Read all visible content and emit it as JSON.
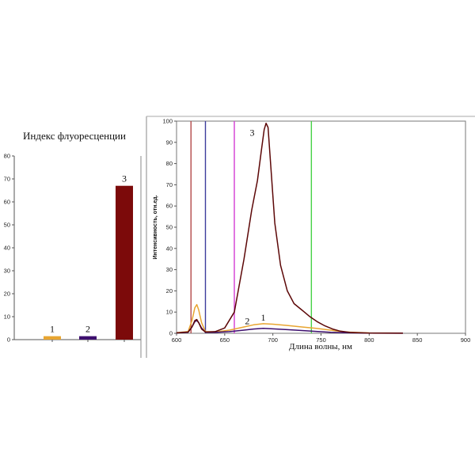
{
  "chart_data": [
    {
      "type": "bar",
      "title": "Индекс флуоресценции",
      "categories": [
        "1",
        "2",
        "3"
      ],
      "values": [
        1.5,
        1.5,
        67
      ],
      "colors": [
        "#e8a531",
        "#3d0e6e",
        "#7c0a0a"
      ],
      "ylim": [
        0,
        80
      ],
      "yticks": [
        "0",
        "10",
        "20",
        "30",
        "40",
        "50",
        "60",
        "70",
        "80"
      ],
      "grid": false
    },
    {
      "type": "line",
      "xlabel": "Длина волны, нм",
      "ylabel": "Интенсивность, отн.ед.",
      "xlim": [
        600,
        900
      ],
      "ylim": [
        0,
        100
      ],
      "xticks": [
        "600",
        "650",
        "700",
        "750",
        "800",
        "850",
        "900"
      ],
      "yticks": [
        "0",
        "10",
        "20",
        "30",
        "40",
        "50",
        "60",
        "70",
        "80",
        "90",
        "100"
      ],
      "vertical_lines": [
        {
          "x": 615,
          "color": "#b44a4a"
        },
        {
          "x": 630,
          "color": "#3c3c9c"
        },
        {
          "x": 660,
          "color": "#d23cd2"
        },
        {
          "x": 740,
          "color": "#46d246"
        }
      ],
      "series": [
        {
          "label": "1",
          "color": "#e8a531",
          "x": [
            600,
            612,
            616,
            619,
            621,
            623,
            626,
            630,
            640,
            655,
            670,
            680,
            690,
            700,
            715,
            730,
            745,
            760,
            775,
            800,
            835
          ],
          "y": [
            0.3,
            0.8,
            6,
            12,
            13.5,
            11,
            5,
            0.8,
            0.6,
            1.5,
            3,
            4,
            4.5,
            4.3,
            3.7,
            3,
            2.3,
            1.5,
            0.6,
            0.2,
            0.1
          ]
        },
        {
          "label": "2",
          "color": "#3d0e6e",
          "x": [
            600,
            612,
            616,
            619,
            621,
            623,
            626,
            630,
            640,
            655,
            670,
            680,
            690,
            700,
            715,
            730,
            745,
            760,
            775,
            800,
            835
          ],
          "y": [
            0.2,
            0.5,
            3,
            5.5,
            6,
            5,
            2.5,
            0.5,
            0.4,
            0.8,
            1.5,
            2,
            2.3,
            2.1,
            1.7,
            1.3,
            0.9,
            0.5,
            0.3,
            0.1,
            0.05
          ]
        },
        {
          "label": "3",
          "color": "#5c0707",
          "x": [
            600,
            612,
            616,
            619,
            621,
            623,
            626,
            630,
            640,
            650,
            660,
            670,
            678,
            684,
            688,
            691,
            693,
            695,
            698,
            702,
            708,
            715,
            722,
            730,
            738,
            746,
            754,
            762,
            770,
            780,
            800,
            835
          ],
          "y": [
            0.2,
            0.6,
            3,
            6,
            6.5,
            5,
            2,
            0.6,
            0.8,
            2.5,
            10,
            35,
            58,
            72,
            86,
            96,
            99,
            97,
            78,
            52,
            32,
            20,
            14,
            11,
            8,
            5.5,
            3.5,
            2,
            1,
            0.4,
            0.1,
            0.05
          ]
        }
      ]
    }
  ]
}
